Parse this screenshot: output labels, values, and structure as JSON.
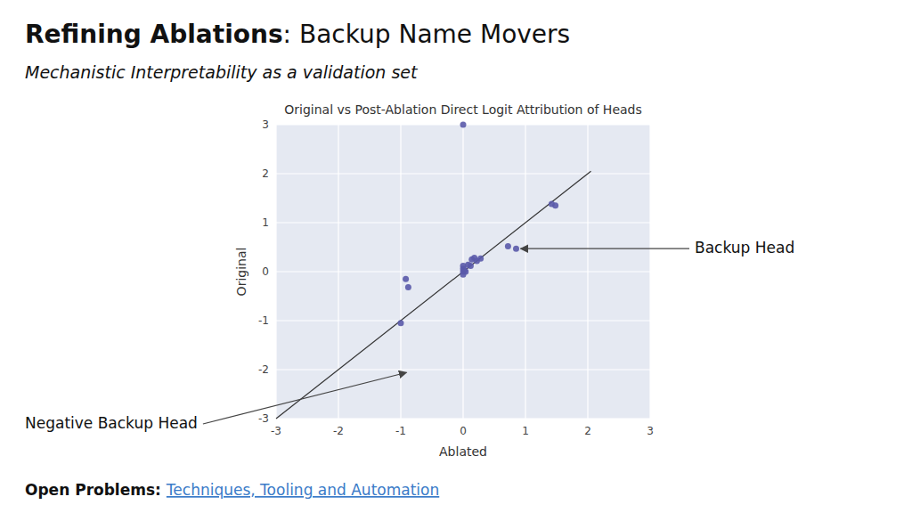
{
  "title": [
    "Refining Ablations",
    ": Backup Name Movers"
  ],
  "subtitle": "Mechanistic Interpretability as a validation set",
  "footer": [
    "Open Problems:",
    "Techniques, Tooling and Automation"
  ],
  "chart_data": {
    "type": "scatter",
    "title": "Original vs Post-Ablation Direct Logit Attribution of Heads",
    "x_label": "Ablated",
    "y_label": "Original",
    "xlim": [
      -3,
      3
    ],
    "ylim": [
      -3,
      3
    ],
    "xticks": [
      -3,
      -2,
      -1,
      0,
      1,
      2,
      3
    ],
    "yticks": [
      -3,
      -2,
      -1,
      0,
      1,
      2,
      3
    ],
    "grid": true,
    "color": "#5a5aaa",
    "x": [
      0.0,
      -1.0,
      -0.88,
      -0.92,
      0.0,
      0.0,
      0.02,
      0.0,
      0.04,
      0.0,
      0.08,
      0.12,
      0.14,
      0.18,
      0.22,
      0.28,
      0.72,
      0.85,
      1.42,
      1.48
    ],
    "values": [
      3.0,
      -1.05,
      -0.32,
      -0.15,
      0.06,
      0.12,
      0.03,
      0.0,
      0.0,
      -0.06,
      0.14,
      0.12,
      0.25,
      0.28,
      0.22,
      0.27,
      0.52,
      0.47,
      1.38,
      1.35
    ],
    "reference_line": {
      "x": [
        -3.0,
        2.05
      ],
      "y": [
        -3.0,
        2.05
      ]
    },
    "annotations": [
      {
        "text": "Backup Head",
        "x": 0.85,
        "y": 0.47
      },
      {
        "text": "Negative Backup Head",
        "x": -0.88,
        "y": -2.05
      }
    ]
  }
}
